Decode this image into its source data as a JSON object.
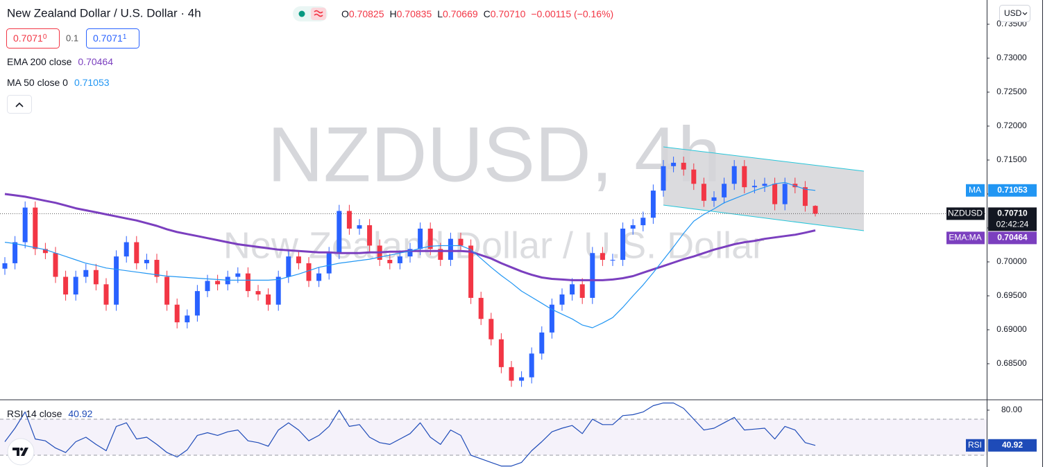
{
  "header": {
    "symbol": "New Zealand Dollar / U.S. Dollar · 4h",
    "o_label": "O",
    "o": "0.70825",
    "h_label": "H",
    "h": "0.70835",
    "l_label": "L",
    "l": "0.70669",
    "c_label": "C",
    "c": "0.70710",
    "change": "−0.00115 (−0.16%)",
    "bid": "0.7071",
    "bid_pip": "0",
    "spread": "0.1",
    "ask": "0.7071",
    "ask_pip": "1",
    "currency": "USD"
  },
  "watermark": {
    "ticker": "NZDUSD, 4h",
    "name": "New Zealand Dollar / U.S. Dollar"
  },
  "chart_data": [
    {
      "type": "candlestick",
      "up_color": "#2962ff",
      "down_color": "#f23645",
      "ylim": [
        0.67969,
        0.73857
      ],
      "yticks": [
        {
          "value": 0.735,
          "label": "0.73500"
        },
        {
          "value": 0.73,
          "label": "0.73000"
        },
        {
          "value": 0.725,
          "label": "0.72500"
        },
        {
          "value": 0.72,
          "label": "0.72000"
        },
        {
          "value": 0.715,
          "label": "0.71500"
        },
        {
          "value": 0.71,
          "label": "0.71000"
        },
        {
          "value": 0.705,
          "label": "0.70500"
        },
        {
          "value": 0.7,
          "label": "0.70000"
        },
        {
          "value": 0.695,
          "label": "0.69500"
        },
        {
          "value": 0.69,
          "label": "0.69000"
        },
        {
          "value": 0.685,
          "label": "0.68500"
        }
      ],
      "open": [
        0.699,
        0.6998,
        0.7029,
        0.708,
        0.7019,
        0.7013,
        0.6978,
        0.6952,
        0.6978,
        0.6988,
        0.6967,
        0.6937,
        0.7008,
        0.7029,
        0.6998,
        0.7003,
        0.6978,
        0.6937,
        0.6911,
        0.6921,
        0.6957,
        0.6972,
        0.6967,
        0.6978,
        0.6983,
        0.6957,
        0.6952,
        0.6937,
        0.6978,
        0.7008,
        0.6998,
        0.6972,
        0.6983,
        0.7013,
        0.7075,
        0.7049,
        0.7054,
        0.7024,
        0.7003,
        0.6998,
        0.7008,
        0.7019,
        0.7049,
        0.7019,
        0.7003,
        0.7034,
        0.7024,
        0.6947,
        0.6916,
        0.6886,
        0.6845,
        0.6825,
        0.683,
        0.6865,
        0.6896,
        0.6937,
        0.6952,
        0.6967,
        0.6947,
        0.7013,
        0.7003,
        0.7003,
        0.7049,
        0.7054,
        0.7065,
        0.7105,
        0.7141,
        0.7146,
        0.7136,
        0.7115,
        0.709,
        0.7095,
        0.7115,
        0.7141,
        0.711,
        0.7112,
        0.7115,
        0.7085,
        0.7115,
        0.711,
        0.70825
      ],
      "high": [
        0.7007,
        0.7038,
        0.7089,
        0.7089,
        0.7028,
        0.7022,
        0.6987,
        0.6987,
        0.6997,
        0.6997,
        0.6976,
        0.7017,
        0.7038,
        0.7038,
        0.7012,
        0.7012,
        0.6987,
        0.6946,
        0.693,
        0.6966,
        0.6981,
        0.6981,
        0.6987,
        0.6992,
        0.6992,
        0.6966,
        0.6961,
        0.6987,
        0.7017,
        0.7017,
        0.7007,
        0.6992,
        0.7022,
        0.7084,
        0.7084,
        0.7063,
        0.7063,
        0.7033,
        0.7012,
        0.7017,
        0.7028,
        0.7058,
        0.7058,
        0.7028,
        0.7043,
        0.7043,
        0.7033,
        0.6956,
        0.6925,
        0.6895,
        0.6854,
        0.6839,
        0.6874,
        0.6905,
        0.6946,
        0.6961,
        0.6976,
        0.6976,
        0.7022,
        0.7022,
        0.7012,
        0.7058,
        0.7063,
        0.7074,
        0.7114,
        0.715,
        0.7155,
        0.7155,
        0.7145,
        0.7124,
        0.7104,
        0.7124,
        0.715,
        0.715,
        0.7121,
        0.7124,
        0.7124,
        0.7124,
        0.7124,
        0.7119,
        0.70835
      ],
      "low": [
        0.6981,
        0.6989,
        0.702,
        0.701,
        0.7004,
        0.6969,
        0.6943,
        0.6943,
        0.6969,
        0.6958,
        0.6928,
        0.6928,
        0.6999,
        0.6989,
        0.6989,
        0.6969,
        0.6928,
        0.6902,
        0.6902,
        0.6912,
        0.6948,
        0.6958,
        0.6958,
        0.6969,
        0.6948,
        0.6943,
        0.6928,
        0.6928,
        0.6969,
        0.6989,
        0.6963,
        0.6963,
        0.6974,
        0.7004,
        0.704,
        0.704,
        0.7015,
        0.6994,
        0.6989,
        0.6989,
        0.6999,
        0.701,
        0.701,
        0.6994,
        0.6994,
        0.7015,
        0.6938,
        0.6907,
        0.6877,
        0.6836,
        0.6816,
        0.6816,
        0.6821,
        0.6856,
        0.6887,
        0.6928,
        0.6943,
        0.6938,
        0.6938,
        0.6994,
        0.6994,
        0.6994,
        0.704,
        0.7045,
        0.7056,
        0.7096,
        0.7132,
        0.7127,
        0.7106,
        0.7081,
        0.7081,
        0.7086,
        0.7106,
        0.7101,
        0.7101,
        0.7103,
        0.7076,
        0.7076,
        0.7101,
        0.7074,
        0.70669
      ],
      "close": [
        0.6998,
        0.7029,
        0.708,
        0.7019,
        0.7013,
        0.6978,
        0.6952,
        0.6978,
        0.6988,
        0.6967,
        0.6937,
        0.7008,
        0.7029,
        0.6998,
        0.7003,
        0.6978,
        0.6937,
        0.6911,
        0.6921,
        0.6957,
        0.6972,
        0.6967,
        0.6978,
        0.6983,
        0.6957,
        0.6952,
        0.6937,
        0.6978,
        0.7008,
        0.6998,
        0.6972,
        0.6983,
        0.7013,
        0.7075,
        0.7049,
        0.7054,
        0.7024,
        0.7003,
        0.6998,
        0.7008,
        0.7019,
        0.7049,
        0.7019,
        0.7003,
        0.7034,
        0.7024,
        0.6947,
        0.6916,
        0.6886,
        0.6845,
        0.6825,
        0.683,
        0.6865,
        0.6896,
        0.6937,
        0.6952,
        0.6967,
        0.6947,
        0.7013,
        0.7003,
        0.7003,
        0.7049,
        0.7054,
        0.7065,
        0.7105,
        0.7141,
        0.7146,
        0.7136,
        0.7115,
        0.709,
        0.7095,
        0.7115,
        0.7141,
        0.711,
        0.7112,
        0.7115,
        0.7085,
        0.7115,
        0.711,
        0.70825,
        0.7071
      ],
      "last_price": {
        "name": "NZDUSD",
        "label": "0.70710",
        "countdown": "02:42:24"
      },
      "series": [
        {
          "name": "EMA 200 close",
          "value_label": "0.70464",
          "axis_label": "EMA:MA",
          "color": "#7b3fbf",
          "width": 3,
          "values": [
            0.71,
            0.7098,
            0.7096,
            0.7093,
            0.709,
            0.7087,
            0.7083,
            0.7079,
            0.7076,
            0.7073,
            0.707,
            0.7067,
            0.7064,
            0.7061,
            0.7057,
            0.7053,
            0.7048,
            0.7044,
            0.7041,
            0.7038,
            0.7035,
            0.7032,
            0.7029,
            0.7026,
            0.7024,
            0.7022,
            0.702,
            0.7018,
            0.7017,
            0.7016,
            0.7015,
            0.7014,
            0.7014,
            0.7013,
            0.7013,
            0.7013,
            0.7014,
            0.7014,
            0.7015,
            0.7015,
            0.7016,
            0.7016,
            0.7016,
            0.7016,
            0.7016,
            0.7016,
            0.7015,
            0.701,
            0.7005,
            0.6998,
            0.6992,
            0.6986,
            0.6981,
            0.6977,
            0.6975,
            0.6974,
            0.6973,
            0.6973,
            0.6973,
            0.6973,
            0.6974,
            0.6976,
            0.6979,
            0.6984,
            0.6989,
            0.6994,
            0.6999,
            0.7004,
            0.7008,
            0.7013,
            0.7018,
            0.7022,
            0.7026,
            0.7029,
            0.7031,
            0.7034,
            0.7036,
            0.7038,
            0.704,
            0.7043,
            0.70464
          ]
        },
        {
          "name": "MA 50 close 0",
          "value_label": "0.71053",
          "axis_label": "MA",
          "color": "#2196f3",
          "width": 1.2,
          "values": [
            0.7029,
            0.7027,
            0.7024,
            0.7021,
            0.7018,
            0.7013,
            0.7008,
            0.7003,
            0.6998,
            0.6995,
            0.6991,
            0.6989,
            0.6987,
            0.6985,
            0.6983,
            0.6981,
            0.6979,
            0.6978,
            0.6977,
            0.6976,
            0.6975,
            0.6974,
            0.6973,
            0.6973,
            0.6973,
            0.6973,
            0.6973,
            0.6974,
            0.6978,
            0.6982,
            0.6987,
            0.6992,
            0.6995,
            0.6998,
            0.7,
            0.7002,
            0.7004,
            0.7007,
            0.701,
            0.7013,
            0.7016,
            0.702,
            0.7023,
            0.7024,
            0.7024,
            0.7024,
            0.7018,
            0.7005,
            0.6992,
            0.698,
            0.6969,
            0.6957,
            0.6948,
            0.6939,
            0.693,
            0.6923,
            0.6916,
            0.6907,
            0.6903,
            0.691,
            0.6918,
            0.6933,
            0.695,
            0.6966,
            0.6984,
            0.7003,
            0.7022,
            0.7042,
            0.706,
            0.707,
            0.7078,
            0.7087,
            0.7093,
            0.7099,
            0.7105,
            0.711,
            0.7115,
            0.7117,
            0.7112,
            0.7107,
            0.71053
          ]
        }
      ]
    },
    {
      "type": "line",
      "ylim": [
        16.9,
        91.5
      ],
      "yticks": [
        {
          "value": 80,
          "label": "80.00"
        }
      ],
      "band": [
        30,
        70
      ],
      "series": [
        {
          "name": "RSI 14 close",
          "value_label": "40.92",
          "axis_label": "RSI",
          "color": "#1e4bb8",
          "width": 1.2,
          "values": [
            45,
            60,
            78,
            48,
            46,
            38,
            33,
            45,
            50,
            42,
            35,
            62,
            66,
            48,
            50,
            42,
            33,
            28,
            36,
            52,
            55,
            52,
            56,
            58,
            46,
            44,
            40,
            58,
            66,
            58,
            46,
            52,
            62,
            80,
            62,
            64,
            50,
            44,
            42,
            48,
            54,
            66,
            50,
            42,
            58,
            52,
            30,
            26,
            22,
            18,
            18,
            22,
            35,
            45,
            56,
            60,
            63,
            54,
            70,
            64,
            64,
            74,
            75,
            78,
            85,
            88,
            88,
            82,
            70,
            58,
            60,
            66,
            72,
            58,
            59,
            60,
            48,
            62,
            58,
            44,
            40.92
          ]
        }
      ]
    }
  ]
}
